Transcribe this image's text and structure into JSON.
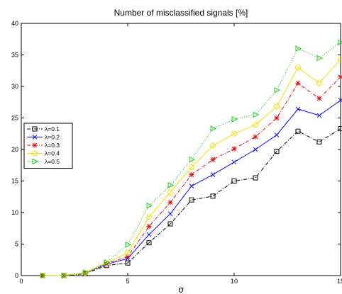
{
  "chart_data": {
    "type": "line",
    "title": "Number of misclassified signals [%]",
    "xlabel": "σ",
    "ylabel": "",
    "xlim": [
      0,
      15
    ],
    "ylim": [
      0,
      40
    ],
    "xticks": [
      "0",
      "5",
      "10",
      "15"
    ],
    "yticks": [
      "0",
      "5",
      "10",
      "15",
      "20",
      "25",
      "30",
      "35",
      "40"
    ],
    "grid": false,
    "legend_position": "left",
    "x": [
      1,
      2,
      3,
      4,
      5,
      6,
      7,
      8,
      9,
      10,
      11,
      12,
      13,
      14,
      15
    ],
    "series": [
      {
        "name": "λ=0.1",
        "color": "#000000",
        "marker": "square",
        "dash": "dashdot",
        "values": [
          0,
          0,
          0.3,
          1.6,
          2.0,
          5.2,
          8.2,
          12.0,
          12.6,
          15.0,
          15.5,
          19.7,
          22.9,
          21.2,
          23.3
        ]
      },
      {
        "name": "λ=0.2",
        "color": "#1010ee",
        "marker": "x",
        "dash": "solid",
        "values": [
          0,
          0,
          0.4,
          1.8,
          2.7,
          6.5,
          9.8,
          14.2,
          16.0,
          18.0,
          20.0,
          22.3,
          26.4,
          25.4,
          27.8
        ]
      },
      {
        "name": "λ=0.3",
        "color": "#dd1111",
        "marker": "star",
        "dash": "dashdot",
        "values": [
          0,
          0,
          0.4,
          1.9,
          3.0,
          7.8,
          11.6,
          16.0,
          18.4,
          20.1,
          22.0,
          25.0,
          30.5,
          28.1,
          31.5
        ]
      },
      {
        "name": "λ=0.4",
        "color": "#f0e000",
        "marker": "circle",
        "dash": "solid",
        "values": [
          0,
          0,
          0.4,
          2.0,
          3.6,
          9.3,
          13.2,
          17.2,
          20.6,
          22.5,
          23.9,
          26.8,
          33.0,
          30.5,
          34.3
        ]
      },
      {
        "name": "λ=0.5",
        "color": "#22cc22",
        "marker": "triangle-right",
        "dash": "dotted",
        "values": [
          0,
          0,
          0.5,
          2.1,
          4.9,
          11.1,
          14.3,
          18.4,
          23.3,
          24.8,
          25.5,
          29.4,
          36.0,
          34.5,
          37.0
        ]
      }
    ]
  }
}
